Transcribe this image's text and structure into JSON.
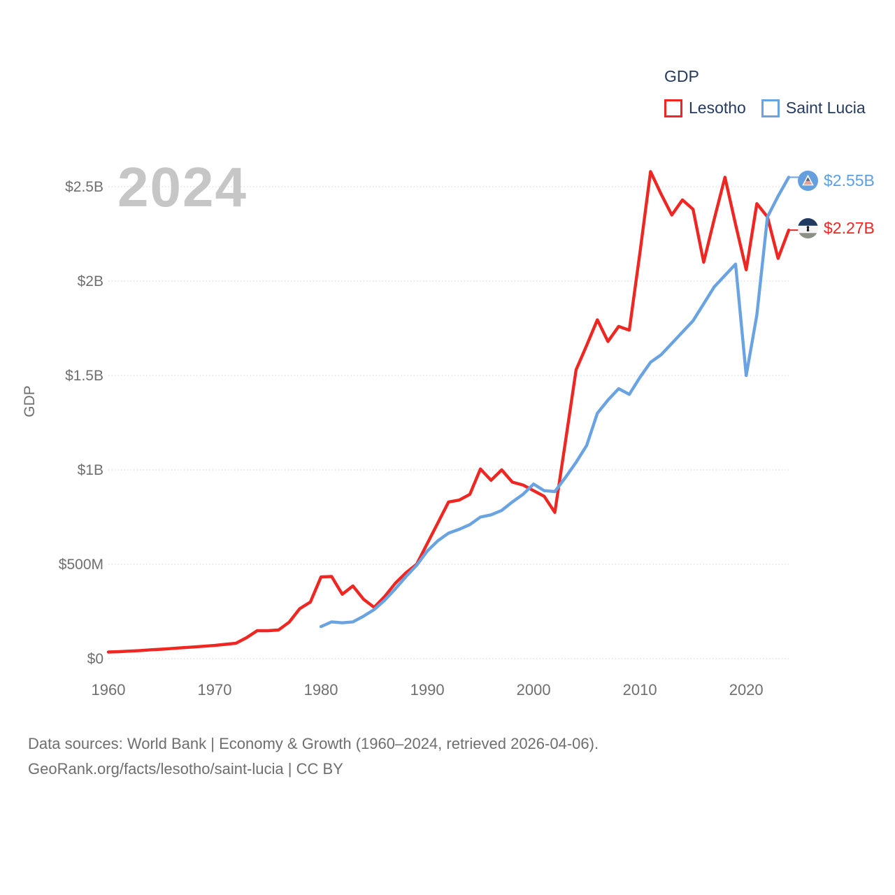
{
  "legend": {
    "title": "GDP",
    "items": [
      {
        "label": "Lesotho",
        "color": "#ee2722"
      },
      {
        "label": "Saint Lucia",
        "color": "#6aa3e1"
      }
    ]
  },
  "watermark": "2024",
  "end_labels": [
    {
      "series": "Saint Lucia",
      "value": "$2.55B",
      "color": "#5e9fe0"
    },
    {
      "series": "Lesotho",
      "value": "$2.27B",
      "color": "#ee2722"
    }
  ],
  "footer": {
    "line1": "Data sources: World Bank | Economy & Growth (1960–2024, retrieved 2026-04-06).",
    "line2": "GeoRank.org/facts/lesotho/saint-lucia | CC BY"
  },
  "chart_data": {
    "type": "line",
    "title": "GDP",
    "ylabel": "GDP",
    "xlabel": "",
    "grid": "horizontal-dotted",
    "legend_position": "top-right",
    "x_range_years": [
      1960,
      2024
    ],
    "xtick_years": [
      1960,
      1970,
      1980,
      1990,
      2000,
      2010,
      2020
    ],
    "ytick_values_billions": [
      0,
      0.5,
      1.0,
      1.5,
      2.0,
      2.5
    ],
    "ytick_labels": [
      "$0",
      "$500M",
      "$1B",
      "$1.5B",
      "$2B",
      "$2.5B"
    ],
    "ylim_billions": [
      0,
      2.7
    ],
    "series": [
      {
        "name": "Lesotho",
        "color": "#ee2722",
        "start_year": 1960,
        "end_value_label": "$2.27B",
        "values_billions": [
          0.035,
          0.037,
          0.04,
          0.043,
          0.047,
          0.05,
          0.054,
          0.058,
          0.062,
          0.066,
          0.07,
          0.076,
          0.082,
          0.111,
          0.148,
          0.148,
          0.152,
          0.193,
          0.265,
          0.3,
          0.433,
          0.435,
          0.341,
          0.385,
          0.315,
          0.272,
          0.33,
          0.4,
          0.455,
          0.5,
          0.61,
          0.72,
          0.83,
          0.84,
          0.87,
          1.005,
          0.945,
          1.0,
          0.935,
          0.92,
          0.89,
          0.86,
          0.775,
          1.15,
          1.53,
          1.66,
          1.795,
          1.68,
          1.76,
          1.74,
          2.15,
          2.58,
          2.46,
          2.35,
          2.43,
          2.38,
          2.1,
          2.33,
          2.55,
          2.3,
          2.06,
          2.41,
          2.34,
          2.12,
          2.27
        ]
      },
      {
        "name": "Saint Lucia",
        "color": "#6aa3e1",
        "start_year": 1980,
        "end_value_label": "$2.55B",
        "values_billions": [
          0.17,
          0.195,
          0.19,
          0.195,
          0.225,
          0.26,
          0.31,
          0.37,
          0.435,
          0.495,
          0.57,
          0.625,
          0.665,
          0.685,
          0.71,
          0.75,
          0.762,
          0.785,
          0.83,
          0.87,
          0.925,
          0.89,
          0.885,
          0.96,
          1.04,
          1.13,
          1.3,
          1.37,
          1.43,
          1.4,
          1.49,
          1.57,
          1.61,
          1.67,
          1.73,
          1.79,
          1.88,
          1.97,
          2.03,
          2.09,
          1.5,
          1.82,
          2.34,
          2.45,
          2.55
        ]
      }
    ]
  }
}
